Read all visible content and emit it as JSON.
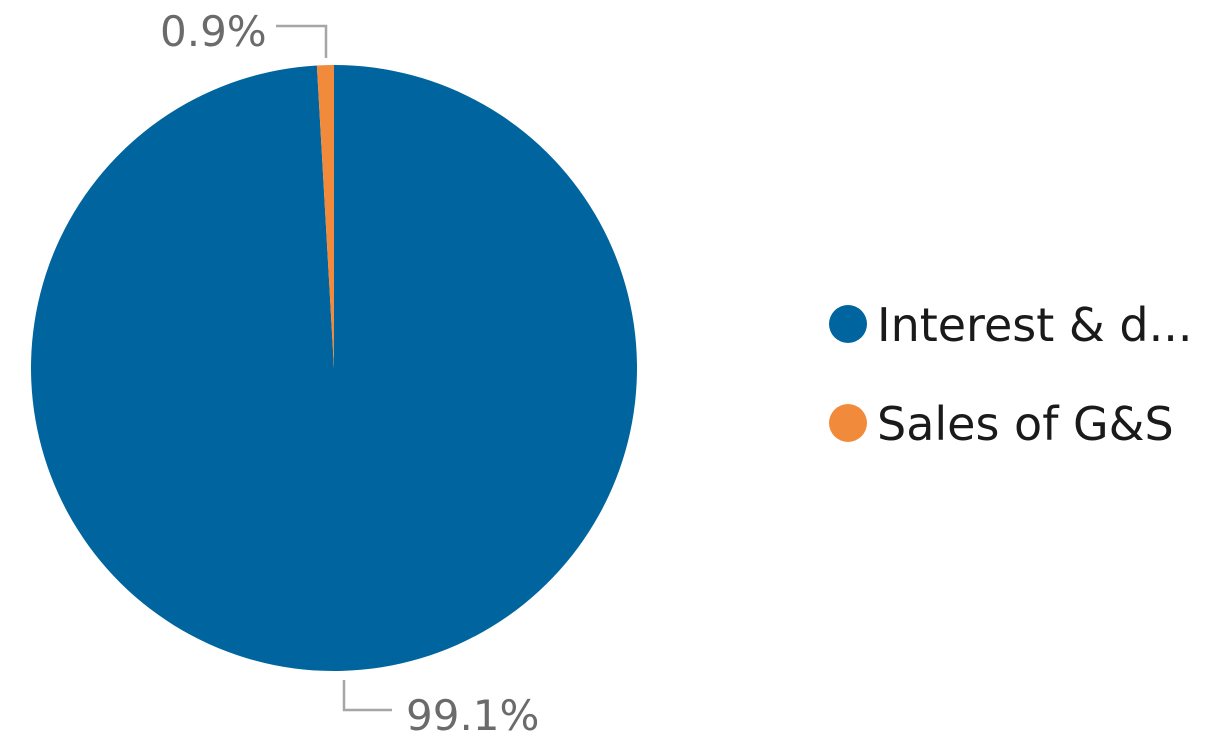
{
  "chart_data": {
    "type": "pie",
    "slices": [
      {
        "label": "Interest & d...",
        "value": 99.1,
        "display": "99.1%",
        "color": "#00659e"
      },
      {
        "label": "Sales of G&S",
        "value": 0.9,
        "display": "0.9%",
        "color": "#f28a3c"
      }
    ],
    "legend_position": "right"
  }
}
